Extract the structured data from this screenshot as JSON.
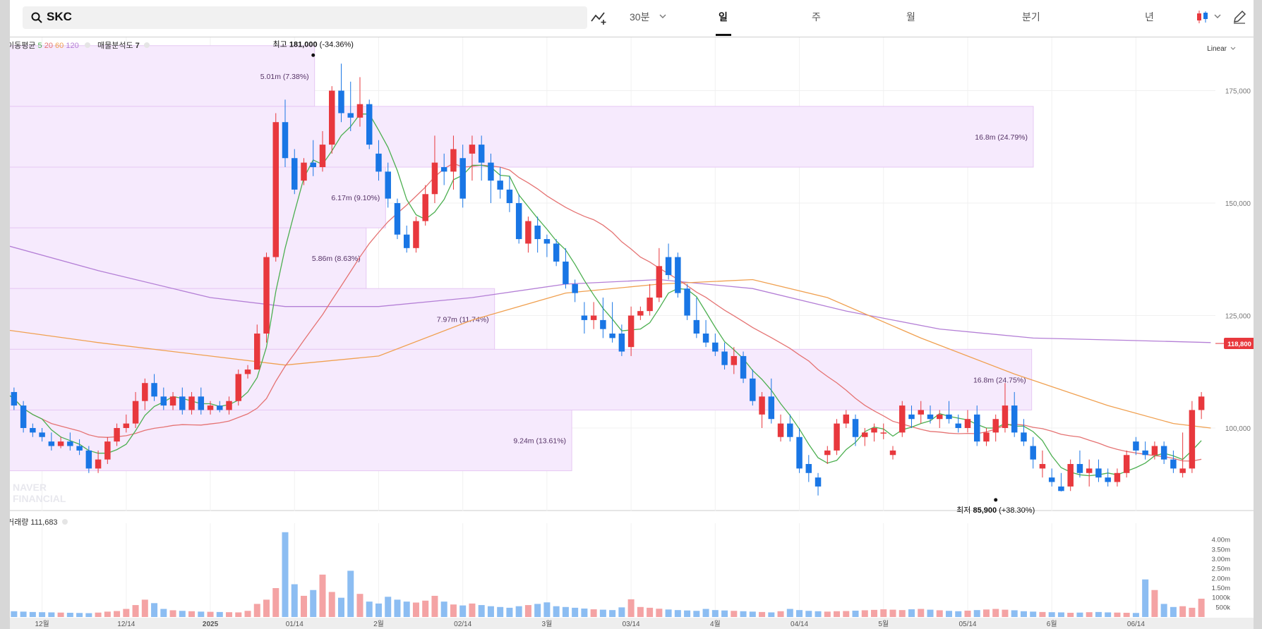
{
  "search": {
    "query": "SKC"
  },
  "toolbar": {
    "intervals": [
      "30분",
      "일",
      "주",
      "월",
      "분기",
      "년"
    ],
    "active_interval": "일",
    "scale_label": "Linear"
  },
  "indicators": {
    "ma_label": "이동평균",
    "ma_periods": [
      "5",
      "20",
      "60",
      "120"
    ],
    "ma_colors": [
      "#4caf50",
      "#e57373",
      "#f0a050",
      "#b47fd6"
    ],
    "vp_label": "매물분석도",
    "vp_value": "7",
    "volume_label": "거래량",
    "volume_value": "111,683"
  },
  "watermark": [
    "NAVER",
    "FINANCIAL"
  ],
  "colors": {
    "up": "#e8383d",
    "down": "#1976e5",
    "vp_fill": "#f6eafd",
    "vp_stroke": "#e6c8f3"
  },
  "chart_data": {
    "type": "candlestick",
    "y_ticks": [
      "175,000",
      "150,000",
      "125,000",
      "100,000"
    ],
    "y_tick_values": [
      175000,
      150000,
      125000,
      100000
    ],
    "ylim": [
      81500,
      187000
    ],
    "x_labels": [
      "12월",
      "12/14",
      "2025",
      "01/14",
      "2월",
      "02/14",
      "3월",
      "03/14",
      "4월",
      "04/14",
      "5월",
      "05/14",
      "6월",
      "06/14"
    ],
    "x_label_index": [
      4,
      13,
      22,
      31,
      40,
      49,
      58,
      67,
      76,
      85,
      94,
      103,
      112,
      121
    ],
    "x_range_bars": [
      -0.5,
      129.5
    ],
    "current_price": "118,800",
    "high_annotation": {
      "label": "최고",
      "value": "181,000",
      "pct": "(-34.36%)",
      "bar_index": 33,
      "price": 181000
    },
    "low_annotation": {
      "label": "최저",
      "value": "85,900",
      "pct": "(+38.30%)",
      "bar_index": 106,
      "price": 85900
    },
    "candles": [
      [
        109000,
        111000,
        106000,
        108000
      ],
      [
        108000,
        109000,
        104000,
        105000
      ],
      [
        105000,
        106000,
        99000,
        100000
      ],
      [
        100000,
        101000,
        98000,
        99000
      ],
      [
        99000,
        100000,
        97000,
        98000
      ],
      [
        97000,
        99000,
        95000,
        96000
      ],
      [
        96000,
        98000,
        95500,
        97000
      ],
      [
        97000,
        99000,
        95000,
        96000
      ],
      [
        96000,
        97500,
        94000,
        95000
      ],
      [
        95000,
        96000,
        90000,
        91000
      ],
      [
        91000,
        95000,
        90000,
        93000
      ],
      [
        93000,
        98000,
        92000,
        97000
      ],
      [
        97000,
        101000,
        96000,
        100000
      ],
      [
        100000,
        103000,
        99000,
        101000
      ],
      [
        101000,
        108000,
        100000,
        106000
      ],
      [
        106000,
        111000,
        104000,
        110000
      ],
      [
        110000,
        112000,
        106000,
        107000
      ],
      [
        107000,
        109000,
        104000,
        105000
      ],
      [
        105000,
        108000,
        104000,
        107000
      ],
      [
        107000,
        109000,
        103000,
        104000
      ],
      [
        104000,
        108000,
        103000,
        107000
      ],
      [
        107000,
        109000,
        103000,
        104000
      ],
      [
        104000,
        106000,
        103000,
        105000
      ],
      [
        105000,
        106000,
        103500,
        104000
      ],
      [
        104000,
        107000,
        103000,
        106000
      ],
      [
        106000,
        113000,
        105000,
        112000
      ],
      [
        112000,
        114000,
        111000,
        113000
      ],
      [
        113000,
        123000,
        113000,
        121000
      ],
      [
        121000,
        139000,
        119000,
        138000
      ],
      [
        138000,
        170000,
        137000,
        168000
      ],
      [
        168000,
        173000,
        158000,
        160000
      ],
      [
        160000,
        162000,
        152000,
        153000
      ],
      [
        155000,
        160000,
        154000,
        159000
      ],
      [
        159000,
        164000,
        156000,
        158000
      ],
      [
        158000,
        166000,
        157000,
        163000
      ],
      [
        163000,
        176000,
        161000,
        175000
      ],
      [
        175000,
        181000,
        168000,
        170000
      ],
      [
        170000,
        177000,
        166000,
        169000
      ],
      [
        169000,
        178000,
        167000,
        172000
      ],
      [
        172000,
        173000,
        162000,
        163000
      ],
      [
        161000,
        164000,
        155000,
        157000
      ],
      [
        157000,
        159000,
        149000,
        151000
      ],
      [
        150000,
        151000,
        142000,
        143000
      ],
      [
        143000,
        145000,
        139000,
        140000
      ],
      [
        140000,
        147000,
        139000,
        146000
      ],
      [
        146000,
        154000,
        145000,
        152000
      ],
      [
        152000,
        165000,
        150000,
        159000
      ],
      [
        158000,
        161000,
        154000,
        157000
      ],
      [
        157000,
        165000,
        153000,
        162000
      ],
      [
        160000,
        163000,
        149000,
        151000
      ],
      [
        161000,
        165000,
        155000,
        163000
      ],
      [
        163000,
        165000,
        155000,
        159000
      ],
      [
        159000,
        161000,
        150000,
        155000
      ],
      [
        155000,
        158000,
        151000,
        153000
      ],
      [
        153000,
        156000,
        148000,
        150000
      ],
      [
        150000,
        152000,
        141000,
        142000
      ],
      [
        141000,
        147000,
        139000,
        146000
      ],
      [
        145000,
        147000,
        139000,
        142000
      ],
      [
        142000,
        143000,
        138000,
        141000
      ],
      [
        141000,
        142000,
        136000,
        137000
      ],
      [
        137000,
        140000,
        131000,
        132000
      ],
      [
        132000,
        133000,
        128000,
        130000
      ],
      [
        125000,
        128000,
        121000,
        124000
      ],
      [
        124000,
        128000,
        122000,
        125000
      ],
      [
        124000,
        129000,
        120000,
        122000
      ],
      [
        121000,
        128000,
        119000,
        120000
      ],
      [
        121000,
        123000,
        116000,
        117000
      ],
      [
        118000,
        127000,
        116000,
        125000
      ],
      [
        125000,
        127000,
        124000,
        126000
      ],
      [
        126000,
        132000,
        125000,
        129000
      ],
      [
        129000,
        140000,
        128000,
        136000
      ],
      [
        138000,
        141000,
        133000,
        134000
      ],
      [
        138000,
        139000,
        129000,
        130000
      ],
      [
        131000,
        132000,
        124000,
        125000
      ],
      [
        124000,
        129000,
        120000,
        121000
      ],
      [
        121000,
        124000,
        118000,
        119000
      ],
      [
        119000,
        121000,
        116000,
        117000
      ],
      [
        117000,
        119000,
        113000,
        114000
      ],
      [
        114000,
        118000,
        112000,
        116000
      ],
      [
        116000,
        117000,
        110000,
        111000
      ],
      [
        111000,
        113000,
        105000,
        106000
      ],
      [
        103000,
        108000,
        100000,
        107000
      ],
      [
        107000,
        111000,
        101000,
        102000
      ],
      [
        98000,
        103000,
        97000,
        101000
      ],
      [
        101000,
        103000,
        97000,
        98000
      ],
      [
        98000,
        100000,
        90000,
        91000
      ],
      [
        92000,
        94000,
        88000,
        90000
      ],
      [
        89000,
        90000,
        85000,
        87000
      ],
      [
        94000,
        96000,
        92000,
        95000
      ],
      [
        95000,
        102000,
        94000,
        101000
      ],
      [
        101000,
        104000,
        100000,
        103000
      ],
      [
        102000,
        103000,
        96000,
        98000
      ],
      [
        98000,
        100000,
        96000,
        99000
      ],
      [
        99000,
        101000,
        97000,
        100000
      ],
      [
        99000,
        101000,
        97500,
        99000
      ],
      [
        94000,
        96000,
        93000,
        95000
      ],
      [
        99000,
        106000,
        98000,
        105000
      ],
      [
        103000,
        105000,
        100000,
        102000
      ],
      [
        103000,
        106000,
        101000,
        104000
      ],
      [
        103000,
        105000,
        101000,
        102000
      ],
      [
        102000,
        104000,
        100000,
        103000
      ],
      [
        103000,
        106000,
        101000,
        102000
      ],
      [
        101000,
        103000,
        99000,
        100000
      ],
      [
        100000,
        104000,
        99000,
        102000
      ],
      [
        103000,
        105000,
        96000,
        97000
      ],
      [
        97000,
        100000,
        96000,
        99000
      ],
      [
        99000,
        103000,
        97000,
        102000
      ],
      [
        100000,
        110000,
        99000,
        105000
      ],
      [
        105000,
        108000,
        98000,
        99000
      ],
      [
        99000,
        102000,
        96000,
        97000
      ],
      [
        96000,
        98000,
        91000,
        93000
      ],
      [
        91000,
        95000,
        89000,
        92000
      ],
      [
        89000,
        91000,
        87000,
        88000
      ],
      [
        87000,
        90000,
        85900,
        86000
      ],
      [
        87000,
        93000,
        86000,
        92000
      ],
      [
        92000,
        95000,
        89000,
        90000
      ],
      [
        90000,
        93000,
        87000,
        91000
      ],
      [
        91000,
        93000,
        88000,
        89000
      ],
      [
        89000,
        91000,
        87000,
        88000
      ],
      [
        88000,
        91000,
        87000,
        90000
      ],
      [
        90000,
        95000,
        89000,
        94000
      ],
      [
        97000,
        98000,
        94000,
        95000
      ],
      [
        95000,
        97000,
        93000,
        94000
      ],
      [
        94000,
        97000,
        93000,
        96000
      ],
      [
        96000,
        97000,
        92000,
        93000
      ],
      [
        93000,
        95000,
        90000,
        91000
      ],
      [
        90000,
        99000,
        89000,
        91000
      ],
      [
        91000,
        106000,
        90000,
        104000
      ],
      [
        104000,
        108000,
        102000,
        107000
      ]
    ],
    "volume": {
      "ticks": [
        "4.00m",
        "3.50m",
        "3.00m",
        "2.50m",
        "2.00m",
        "1.50m",
        "1000k",
        "500k"
      ],
      "tick_values": [
        4000000,
        3500000,
        3000000,
        2500000,
        2000000,
        1500000,
        1000000,
        500000
      ],
      "ylim": [
        0,
        4500000
      ],
      "values": [
        310000,
        300000,
        280000,
        260000,
        250000,
        240000,
        230000,
        220000,
        210000,
        200000,
        230000,
        280000,
        310000,
        420000,
        620000,
        900000,
        720000,
        420000,
        350000,
        320000,
        300000,
        280000,
        270000,
        260000,
        250000,
        240000,
        320000,
        680000,
        900000,
        1500000,
        4400000,
        1700000,
        1100000,
        1400000,
        2200000,
        1300000,
        1000000,
        2400000,
        1200000,
        800000,
        700000,
        1050000,
        900000,
        800000,
        750000,
        850000,
        1100000,
        800000,
        650000,
        600000,
        700000,
        620000,
        560000,
        520000,
        480000,
        560000,
        620000,
        680000,
        760000,
        560000,
        520000,
        480000,
        440000,
        400000,
        380000,
        360000,
        500000,
        920000,
        520000,
        480000,
        430000,
        390000,
        360000,
        340000,
        320000,
        420000,
        360000,
        340000,
        320000,
        300000,
        280000,
        260000,
        240000,
        300000,
        420000,
        360000,
        320000,
        300000,
        280000,
        300000,
        310000,
        330000,
        350000,
        370000,
        400000,
        380000,
        360000,
        400000,
        420000,
        380000,
        350000,
        320000,
        300000,
        330000,
        360000,
        390000,
        420000,
        380000,
        350000,
        300000,
        280000,
        260000,
        250000,
        240000,
        220000,
        230000,
        250000,
        260000,
        240000,
        230000,
        220000,
        210000,
        1950000,
        1400000,
        680000,
        520000,
        560000,
        480000,
        950000
      ]
    },
    "volume_profile": [
      {
        "label": "5.01m (7.38%)",
        "value": 5010000,
        "pct": 7.38
      },
      {
        "label": "16.8m (24.79%)",
        "value": 16800000,
        "pct": 24.79
      },
      {
        "label": "6.17m (9.10%)",
        "value": 6170000,
        "pct": 9.1
      },
      {
        "label": "5.86m (8.63%)",
        "value": 5860000,
        "pct": 8.63
      },
      {
        "label": "7.97m (11.74%)",
        "value": 7970000,
        "pct": 11.74
      },
      {
        "label": "16.8m (24.75%)",
        "value": 16800000,
        "pct": 24.75
      },
      {
        "label": "9.24m (13.61%)",
        "value": 9240000,
        "pct": 13.61
      }
    ],
    "moving_averages": {
      "ma60_points": [
        [
          -0.5,
          122000
        ],
        [
          10,
          119000
        ],
        [
          22,
          116000
        ],
        [
          30,
          114000
        ],
        [
          40,
          116000
        ],
        [
          50,
          124000
        ],
        [
          60,
          130000
        ],
        [
          70,
          132000
        ],
        [
          80,
          133000
        ],
        [
          88,
          129000
        ],
        [
          98,
          120000
        ],
        [
          108,
          112000
        ],
        [
          118,
          105000
        ],
        [
          125,
          101000
        ],
        [
          129,
          100000
        ]
      ],
      "ma120_points": [
        [
          -0.5,
          141000
        ],
        [
          10,
          135000
        ],
        [
          22,
          129000
        ],
        [
          30,
          127000
        ],
        [
          40,
          127000
        ],
        [
          50,
          129000
        ],
        [
          60,
          132000
        ],
        [
          70,
          133000
        ],
        [
          80,
          131000
        ],
        [
          90,
          126000
        ],
        [
          100,
          122000
        ],
        [
          110,
          120000
        ],
        [
          120,
          119500
        ],
        [
          129,
          119000
        ]
      ]
    }
  }
}
